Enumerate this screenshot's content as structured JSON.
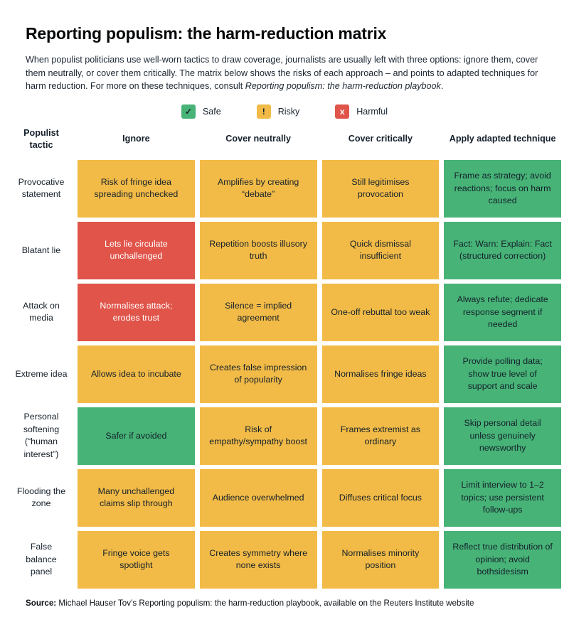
{
  "header": {
    "title": "Reporting populism: the harm-reduction matrix",
    "intro_before": "When populist politicians use well-worn tactics to draw coverage, journalists are usually left with three options: ignore them, cover them neutrally, or cover them critically. The matrix below shows the risks of each approach – and points to adapted techniques for harm reduction. For more on these techniques, consult ",
    "intro_italic": "Reporting populism: the harm-reduction playbook",
    "intro_after": "."
  },
  "legend": {
    "items": [
      {
        "label": "Safe",
        "status": "safe",
        "glyph": "✓",
        "icon": "check-icon"
      },
      {
        "label": "Risky",
        "status": "risky",
        "glyph": "!",
        "icon": "exclamation-icon"
      },
      {
        "label": "Harmful",
        "status": "harmful",
        "glyph": "x",
        "icon": "x-icon"
      }
    ]
  },
  "colors": {
    "safe": "#47B377",
    "risky": "#F2BB47",
    "harmful": "#E0544A"
  },
  "chart_data": {
    "type": "table",
    "title": "Reporting populism: the harm-reduction matrix",
    "row_header": "Populist tactic",
    "columns": [
      "Ignore",
      "Cover neutrally",
      "Cover critically",
      "Apply adapted technique"
    ],
    "legend": [
      {
        "label": "Safe",
        "color": "#47B377"
      },
      {
        "label": "Risky",
        "color": "#F2BB47"
      },
      {
        "label": "Harmful",
        "color": "#E0544A"
      }
    ],
    "rows": [
      {
        "tactic": "Provocative statement",
        "cells": [
          {
            "text": "Risk of fringe idea spreading unchecked",
            "status": "risky"
          },
          {
            "text": "Amplifies by creating “debate”",
            "status": "risky"
          },
          {
            "text": "Still legitimises provocation",
            "status": "risky"
          },
          {
            "text": "Frame as strategy; avoid reactions; focus on harm caused",
            "status": "safe"
          }
        ]
      },
      {
        "tactic": "Blatant lie",
        "cells": [
          {
            "text": "Lets lie circulate unchallenged",
            "status": "harmful"
          },
          {
            "text": "Repetition boosts illusory truth",
            "status": "risky"
          },
          {
            "text": "Quick dismissal insufficient",
            "status": "risky"
          },
          {
            "text": "Fact: Warn: Explain: Fact (structured correction)",
            "status": "safe"
          }
        ]
      },
      {
        "tactic": "Attack on media",
        "cells": [
          {
            "text": "Normalises attack; erodes trust",
            "status": "harmful"
          },
          {
            "text": "Silence = implied agreement",
            "status": "risky"
          },
          {
            "text": "One-off rebuttal too weak",
            "status": "risky"
          },
          {
            "text": "Always refute; dedicate response segment if needed",
            "status": "safe"
          }
        ]
      },
      {
        "tactic": "Extreme idea",
        "cells": [
          {
            "text": "Allows idea to incubate",
            "status": "risky"
          },
          {
            "text": "Creates false impression of popularity",
            "status": "risky"
          },
          {
            "text": "Normalises fringe ideas",
            "status": "risky"
          },
          {
            "text": "Provide polling data; show true level of support and scale",
            "status": "safe"
          }
        ]
      },
      {
        "tactic": "Personal softening (“human interest”)",
        "cells": [
          {
            "text": "Safer if avoided",
            "status": "safe"
          },
          {
            "text": "Risk of empathy/sympathy boost",
            "status": "risky"
          },
          {
            "text": "Frames extremist as ordinary",
            "status": "risky"
          },
          {
            "text": "Skip personal detail unless genuinely newsworthy",
            "status": "safe"
          }
        ]
      },
      {
        "tactic": "Flooding the zone",
        "cells": [
          {
            "text": "Many unchallenged claims slip through",
            "status": "risky"
          },
          {
            "text": "Audience overwhelmed",
            "status": "risky"
          },
          {
            "text": "Diffuses critical focus",
            "status": "risky"
          },
          {
            "text": "Limit interview to 1–2 topics; use persistent follow-ups",
            "status": "safe"
          }
        ]
      },
      {
        "tactic": "False balance panel",
        "cells": [
          {
            "text": "Fringe voice gets spotlight",
            "status": "risky"
          },
          {
            "text": "Creates symmetry where none exists",
            "status": "risky"
          },
          {
            "text": "Normalises minority position",
            "status": "risky"
          },
          {
            "text": "Reflect true distribution of opinion; avoid bothsidesism",
            "status": "safe"
          }
        ]
      }
    ]
  },
  "footer": {
    "source_label": "Source:",
    "source_text": " Michael Hauser Tov’s Reporting populism: the harm-reduction playbook, available on the Reuters Institute website"
  }
}
